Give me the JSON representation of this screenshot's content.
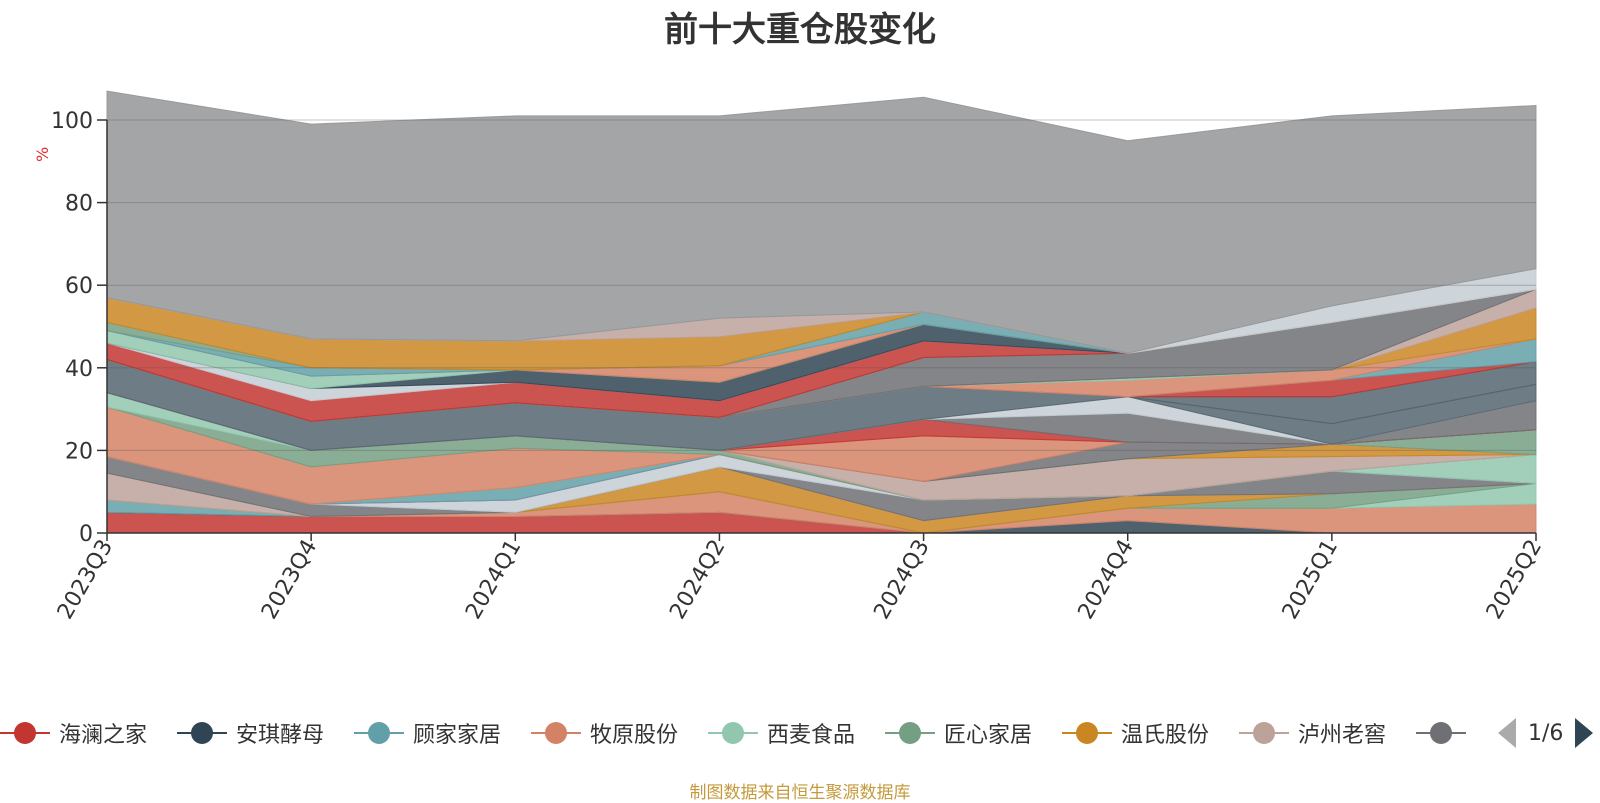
{
  "chart_data": {
    "type": "area",
    "stacked": true,
    "title": "前十大重仓股变化",
    "ylabel": "%",
    "ylim": [
      0,
      100
    ],
    "yticks": [
      0,
      20,
      40,
      60,
      80,
      100
    ],
    "grid": true,
    "legend_position": "bottom",
    "categories": [
      "2023Q3",
      "2023Q4",
      "2024Q1",
      "2024Q2",
      "2024Q3",
      "2024Q4",
      "2025Q1",
      "2025Q2"
    ],
    "series": [
      {
        "name": "海澜之家",
        "color": "#c23531",
        "values": [
          5.0,
          4.0,
          4.0,
          5.0,
          0.0,
          0.0,
          0.0,
          0.0
        ]
      },
      {
        "name": "安琪酵母",
        "color": "#2f4554",
        "values": [
          0.0,
          0.0,
          0.0,
          0.0,
          0.0,
          3.0,
          0.0,
          0.0
        ]
      },
      {
        "name": "顾家家居",
        "color": "#61a0a8",
        "values": [
          3.0,
          0.0,
          0.0,
          0.0,
          0.0,
          0.0,
          0.0,
          0.0
        ]
      },
      {
        "name": "牧原股份",
        "color": "#d48265",
        "values": [
          0.0,
          0.0,
          1.0,
          5.0,
          0.0,
          3.0,
          6.0,
          7.0
        ]
      },
      {
        "name": "西麦食品",
        "color": "#91c7ae",
        "values": [
          0.0,
          0.0,
          0.0,
          0.0,
          0.0,
          0.0,
          0.0,
          5.0
        ]
      },
      {
        "name": "匠心家居",
        "color": "#749f83",
        "values": [
          0.0,
          0.0,
          0.0,
          0.0,
          0.0,
          0.0,
          3.5,
          0.0
        ]
      },
      {
        "name": "温氏股份",
        "color": "#ca8622",
        "values": [
          0.0,
          0.0,
          0.0,
          6.0,
          3.0,
          3.0,
          0.0,
          0.0
        ]
      },
      {
        "name": "泸州老窖",
        "color": "#bda29a",
        "values": [
          6.5,
          0.0,
          0.0,
          0.0,
          0.0,
          0.0,
          0.0,
          0.0
        ]
      },
      {
        "name": "",
        "color": "#6e7074",
        "values": [
          4.0,
          3.0,
          0.0,
          0.0,
          5.0,
          0.0,
          5.5,
          0.0
        ]
      },
      {
        "name": "",
        "color": "#546570",
        "values": [
          0.0,
          0.0,
          0.0,
          0.0,
          0.0,
          0.0,
          0.0,
          0.0
        ]
      },
      {
        "name": "",
        "color": "#c4ccd3",
        "values": [
          0.0,
          0.0,
          3.0,
          3.0,
          0.0,
          0.0,
          0.0,
          0.0
        ]
      },
      {
        "name": "",
        "color": "#f05b72",
        "values": [
          0.0,
          0.0,
          0.0,
          0.0,
          0.0,
          0.0,
          0.0,
          0.0
        ]
      },
      {
        "name": "",
        "color": "#ef5b9c",
        "values": [
          0.0,
          0.0,
          0.0,
          0.0,
          0.0,
          0.0,
          0.0,
          0.0
        ]
      },
      {
        "name": "",
        "color": "#61a0a8",
        "values": [
          0.0,
          0.0,
          3.0,
          0.0,
          0.0,
          0.0,
          0.0,
          0.0
        ]
      },
      {
        "name": "",
        "color": "#91c7ae",
        "values": [
          0.0,
          0.0,
          0.0,
          0.0,
          0.0,
          0.0,
          0.0,
          7.0
        ]
      },
      {
        "name": "",
        "color": "#d48265",
        "values": [
          12.0,
          9.0,
          9.5,
          0.0,
          0.0,
          0.0,
          0.0,
          0.0
        ]
      },
      {
        "name": "",
        "color": "#749f83",
        "values": [
          0.0,
          4.0,
          3.0,
          1.0,
          0.0,
          0.0,
          0.0,
          0.0
        ]
      },
      {
        "name": "",
        "color": "#91c7ae",
        "values": [
          3.5,
          0.0,
          0.0,
          0.0,
          0.0,
          0.0,
          0.0,
          0.0
        ]
      },
      {
        "name": "",
        "color": "#bda29a",
        "values": [
          0.0,
          0.0,
          0.0,
          0.0,
          4.5,
          9.0,
          3.5,
          0.0
        ]
      },
      {
        "name": "",
        "color": "#ca8622",
        "values": [
          0.0,
          0.0,
          0.0,
          0.0,
          0.0,
          0.0,
          3.0,
          0.0
        ]
      },
      {
        "name": "",
        "color": "#749f83",
        "values": [
          0.0,
          0.0,
          0.0,
          0.0,
          0.0,
          0.0,
          0.0,
          6.0
        ]
      },
      {
        "name": "",
        "color": "#6e7074",
        "values": [
          0.0,
          0.0,
          0.0,
          0.0,
          0.0,
          4.0,
          0.0,
          0.0
        ]
      },
      {
        "name": "",
        "color": "#d48265",
        "values": [
          0.0,
          0.0,
          0.0,
          0.0,
          11.0,
          0.0,
          0.0,
          0.0
        ]
      },
      {
        "name": "",
        "color": "#c23531",
        "values": [
          0.0,
          0.0,
          0.0,
          0.0,
          4.0,
          0.0,
          0.0,
          0.0
        ]
      },
      {
        "name": "",
        "color": "#6e7074",
        "values": [
          0.0,
          0.0,
          0.0,
          0.0,
          0.0,
          7.0,
          0.0,
          7.0
        ]
      },
      {
        "name": "",
        "color": "#c4ccd3",
        "values": [
          0.0,
          0.0,
          0.0,
          0.0,
          0.0,
          4.0,
          0.0,
          0.0
        ]
      },
      {
        "name": "",
        "color": "#546570",
        "values": [
          8.0,
          7.0,
          8.0,
          8.0,
          8.0,
          0.0,
          5.0,
          4.0
        ]
      },
      {
        "name": "",
        "color": "#546570",
        "values": [
          0.0,
          0.0,
          0.0,
          0.0,
          0.0,
          0.0,
          6.5,
          5.5
        ]
      },
      {
        "name": "",
        "color": "#c23531",
        "values": [
          0.0,
          0.0,
          0.0,
          0.0,
          0.0,
          0.0,
          4.0,
          0.0
        ]
      },
      {
        "name": "",
        "color": "#61a0a8",
        "values": [
          0.0,
          0.0,
          0.0,
          0.0,
          0.0,
          0.0,
          0.0,
          5.5
        ]
      },
      {
        "name": "",
        "color": "#d48265",
        "values": [
          0.0,
          0.0,
          0.0,
          0.0,
          0.0,
          4.0,
          2.5,
          0.0
        ]
      },
      {
        "name": "",
        "color": "#91c7ae",
        "values": [
          0.0,
          0.0,
          0.0,
          0.0,
          0.0,
          0.5,
          0.0,
          0.0
        ]
      },
      {
        "name": "",
        "color": "#ca8622",
        "values": [
          0.0,
          0.0,
          0.0,
          0.0,
          0.0,
          0.0,
          0.0,
          7.5
        ]
      },
      {
        "name": "",
        "color": "#bda29a",
        "values": [
          0.0,
          0.0,
          0.0,
          0.0,
          0.0,
          0.0,
          0.0,
          4.5
        ]
      },
      {
        "name": "",
        "color": "#6e7074",
        "values": [
          0.0,
          0.0,
          0.0,
          0.0,
          7.0,
          6.0,
          11.5,
          0.0
        ]
      },
      {
        "name": "",
        "color": "#c23531",
        "values": [
          4.0,
          5.0,
          5.0,
          4.0,
          4.0,
          0.0,
          0.0,
          0.0
        ]
      },
      {
        "name": "",
        "color": "#c4ccd3",
        "values": [
          0.0,
          3.0,
          0.0,
          0.0,
          0.0,
          0.0,
          0.0,
          0.0
        ]
      },
      {
        "name": "",
        "color": "#2f4554",
        "values": [
          0.0,
          0.0,
          3.0,
          4.5,
          4.0,
          0.0,
          0.0,
          0.0
        ]
      },
      {
        "name": "",
        "color": "#91c7ae",
        "values": [
          3.0,
          3.0,
          0.0,
          0.0,
          0.0,
          0.0,
          0.0,
          0.0
        ]
      },
      {
        "name": "",
        "color": "#d48265",
        "values": [
          0.0,
          0.0,
          0.0,
          4.0,
          0.0,
          0.0,
          0.0,
          0.0
        ]
      },
      {
        "name": "",
        "color": "#61a0a8",
        "values": [
          0.0,
          2.0,
          0.0,
          0.0,
          3.0,
          0.0,
          0.0,
          0.0
        ]
      },
      {
        "name": "",
        "color": "#749f83",
        "values": [
          2.0,
          0.0,
          0.0,
          0.0,
          0.0,
          0.0,
          0.0,
          0.0
        ]
      },
      {
        "name": "",
        "color": "#ca8622",
        "values": [
          6.0,
          7.0,
          7.0,
          7.0,
          0.0,
          0.0,
          0.0,
          0.0
        ]
      },
      {
        "name": "",
        "color": "#bda29a",
        "values": [
          0.0,
          0.0,
          0.0,
          4.5,
          0.0,
          0.0,
          0.0,
          0.0
        ]
      },
      {
        "name": "",
        "color": "#c4ccd3",
        "values": [
          0.0,
          0.0,
          0.0,
          0.0,
          0.0,
          0.0,
          4.0,
          5.0
        ]
      },
      {
        "name": "",
        "color": "#939598",
        "values": [
          50.0,
          52.0,
          54.5,
          49.0,
          52.0,
          51.5,
          46.0,
          39.5
        ]
      }
    ]
  },
  "legend": {
    "items": [
      {
        "label": "海澜之家",
        "color": "#c23531"
      },
      {
        "label": "安琪酵母",
        "color": "#2f4554"
      },
      {
        "label": "顾家家居",
        "color": "#61a0a8"
      },
      {
        "label": "牧原股份",
        "color": "#d48265"
      },
      {
        "label": "西麦食品",
        "color": "#91c7ae"
      },
      {
        "label": "匠心家居",
        "color": "#749f83"
      },
      {
        "label": "温氏股份",
        "color": "#ca8622"
      },
      {
        "label": "泸州老窖",
        "color": "#bda29a"
      },
      {
        "label": "",
        "color": "#6e7074"
      }
    ],
    "page_indicator": "1/6",
    "prev_icon": "triangle-left-icon",
    "next_icon": "triangle-right-icon"
  },
  "source_note": "制图数据来自恒生聚源数据库",
  "colors": {
    "ylabel": "#e03030",
    "axis": "#333333",
    "grid": "#cccccc",
    "source": "#c49a3c"
  }
}
